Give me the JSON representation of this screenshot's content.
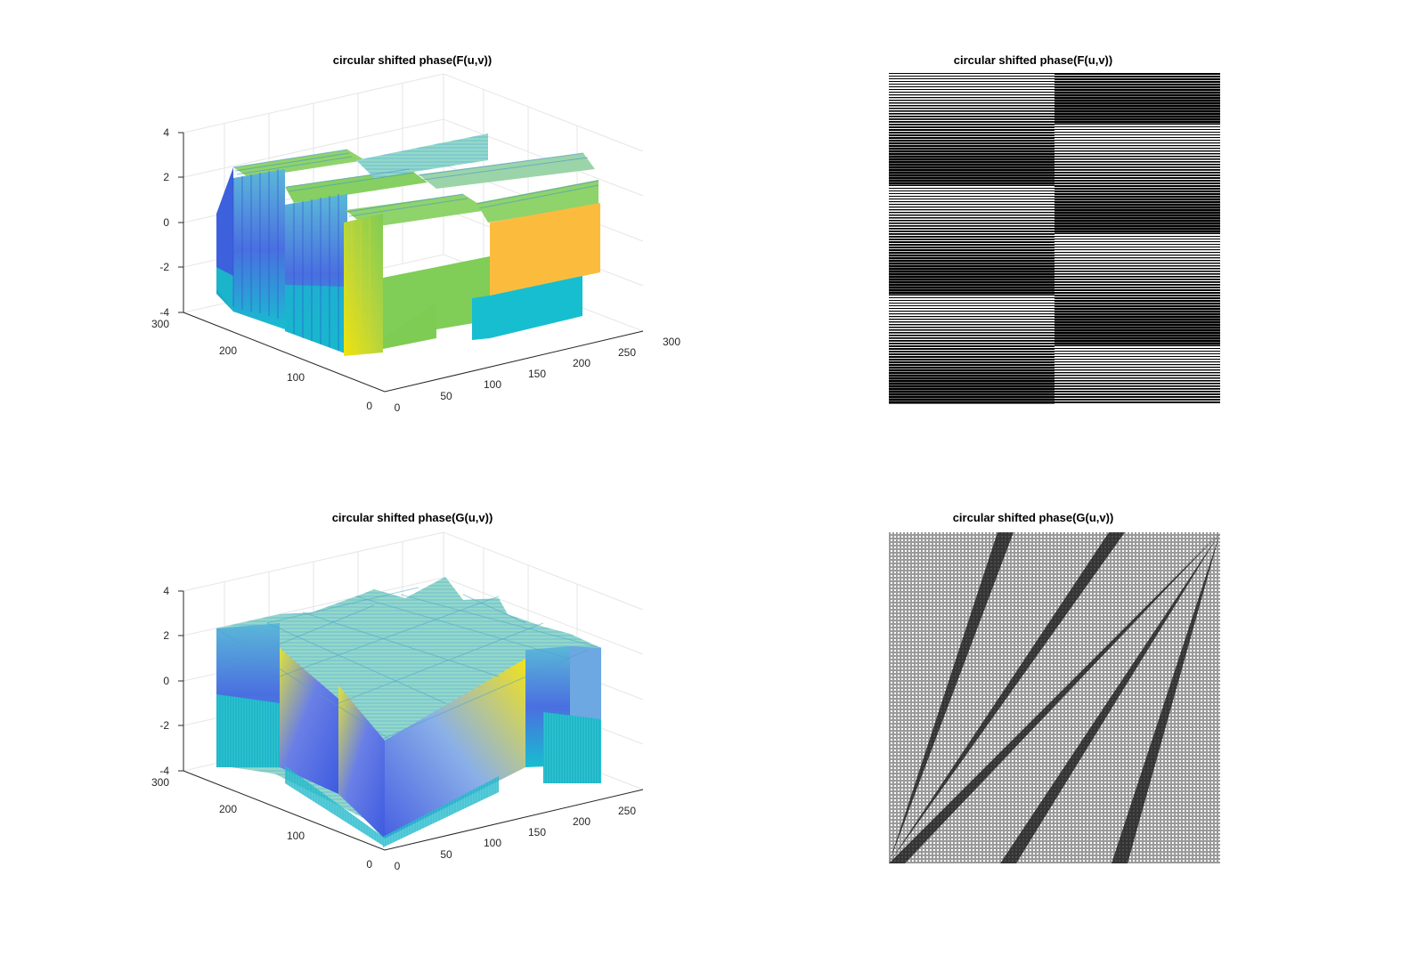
{
  "chart_data": [
    {
      "type": "surface",
      "title": "circular shifted phase(F(u,v))",
      "xlim": [
        0,
        300
      ],
      "ylim": [
        0,
        300
      ],
      "zlim": [
        -4,
        4
      ],
      "xticks": [
        50,
        100,
        150,
        200,
        250,
        300
      ],
      "yticks": [
        0,
        100,
        200,
        300
      ],
      "zticks": [
        -4,
        -2,
        0,
        2,
        4
      ],
      "z_range": [
        -3.14,
        3.14
      ],
      "colormap": "parula",
      "grid": true
    },
    {
      "type": "heatmap",
      "title": "circular shifted phase(F(u,v))",
      "colormap": "gray",
      "pattern": "horizontal stripes, halves split at center column",
      "axes_visible": false
    },
    {
      "type": "surface",
      "title": "circular shifted phase(G(u,v))",
      "xlim": [
        0,
        300
      ],
      "ylim": [
        0,
        300
      ],
      "zlim": [
        -4,
        4
      ],
      "xticks": [
        50,
        100,
        150,
        200,
        250,
        300
      ],
      "yticks": [
        0,
        100,
        200,
        300
      ],
      "zticks": [
        -4,
        -2,
        0,
        2,
        4
      ],
      "z_range": [
        -3.14,
        3.14
      ],
      "colormap": "parula",
      "grid": true
    },
    {
      "type": "heatmap",
      "title": "circular shifted phase(G(u,v))",
      "colormap": "gray",
      "pattern": "diagonal phase wrap bands",
      "axes_visible": false
    }
  ],
  "colors": {
    "parula_blue": "#3e26a8",
    "parula_teal": "#17becf",
    "parula_green": "#7fcc55",
    "parula_yellow": "#f9fb0e",
    "parula_orange": "#fbbc3e"
  }
}
